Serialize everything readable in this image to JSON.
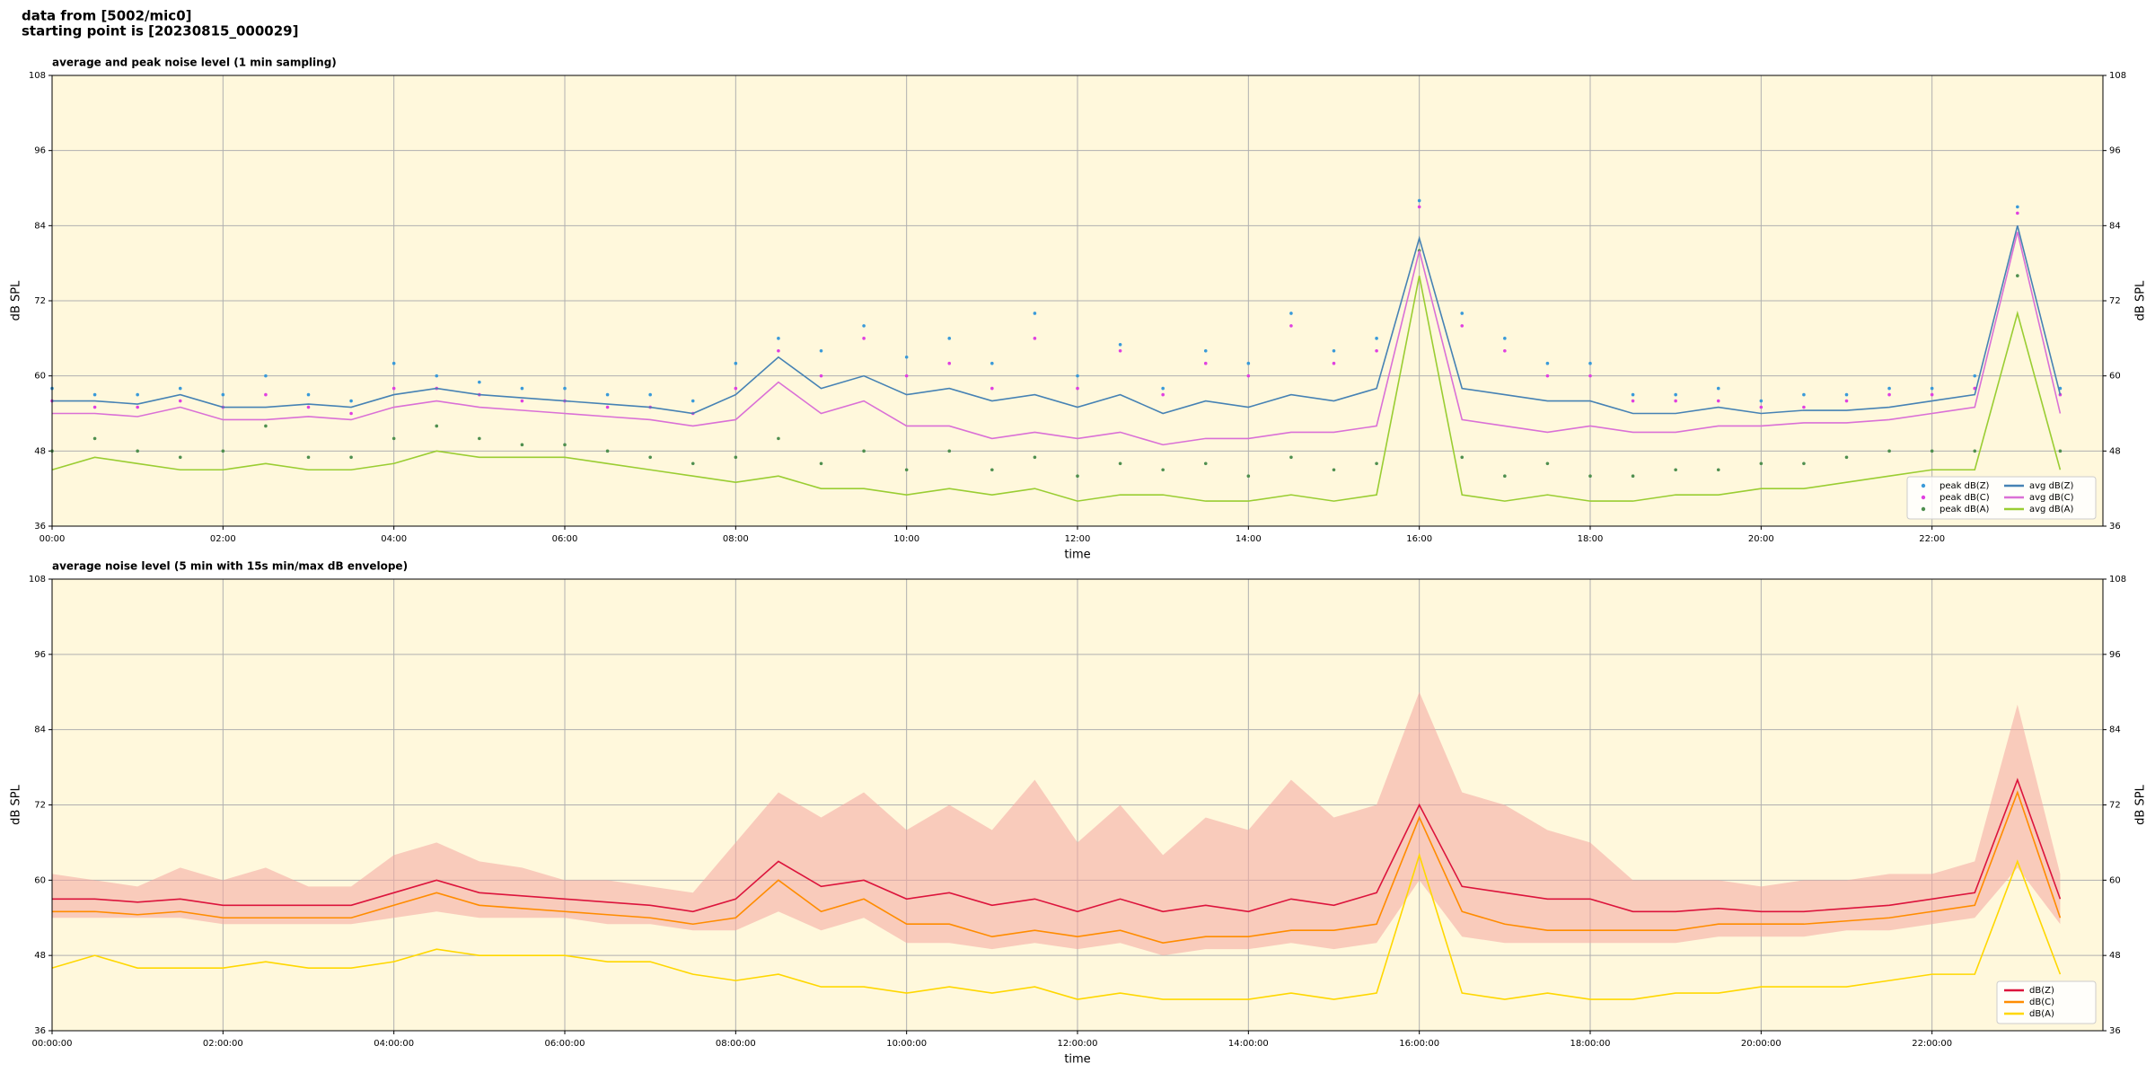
{
  "suptitle": [
    "data from [5002/mic0]",
    "starting point is [20230815_000029]"
  ],
  "chart_data": [
    {
      "type": "line",
      "title": "average and peak noise level (1 min sampling)",
      "xlabel": "time",
      "ylabel": "dB SPL",
      "background": "#fff8dc",
      "grid": true,
      "legend": "lower right",
      "legend_columns": 2,
      "xlim": [
        0,
        24
      ],
      "ylim": [
        36,
        108
      ],
      "xticks": [
        {
          "value": 0,
          "label": "00:00"
        },
        {
          "value": 2,
          "label": "02:00"
        },
        {
          "value": 4,
          "label": "04:00"
        },
        {
          "value": 6,
          "label": "06:00"
        },
        {
          "value": 8,
          "label": "08:00"
        },
        {
          "value": 10,
          "label": "10:00"
        },
        {
          "value": 12,
          "label": "12:00"
        },
        {
          "value": 14,
          "label": "14:00"
        },
        {
          "value": 16,
          "label": "16:00"
        },
        {
          "value": 18,
          "label": "18:00"
        },
        {
          "value": 20,
          "label": "20:00"
        },
        {
          "value": 22,
          "label": "22:00"
        }
      ],
      "yticks": [
        36,
        48,
        60,
        72,
        84,
        96,
        108
      ],
      "x": [
        0,
        0.5,
        1,
        1.5,
        2,
        2.5,
        3,
        3.5,
        4,
        4.5,
        5,
        5.5,
        6,
        6.5,
        7,
        7.5,
        8,
        8.5,
        9,
        9.5,
        10,
        10.5,
        11,
        11.5,
        12,
        12.5,
        13,
        13.5,
        14,
        14.5,
        15,
        15.5,
        16,
        16.5,
        17,
        17.5,
        18,
        18.5,
        19,
        19.5,
        20,
        20.5,
        21,
        21.5,
        22,
        22.5,
        23,
        23.5
      ],
      "series": [
        {
          "name": "peak dB(Z)",
          "type": "scatter",
          "color": "#3a9ad9",
          "values": [
            58,
            57,
            57,
            58,
            57,
            60,
            57,
            56,
            62,
            60,
            59,
            58,
            58,
            57,
            57,
            56,
            62,
            66,
            64,
            68,
            63,
            66,
            62,
            70,
            60,
            65,
            58,
            64,
            62,
            70,
            64,
            66,
            88,
            70,
            66,
            62,
            62,
            57,
            57,
            58,
            56,
            57,
            57,
            58,
            58,
            60,
            87,
            58
          ]
        },
        {
          "name": "peak dB(C)",
          "type": "scatter",
          "color": "#e040e0",
          "values": [
            56,
            55,
            55,
            56,
            55,
            57,
            55,
            54,
            58,
            58,
            57,
            56,
            56,
            55,
            55,
            54,
            58,
            64,
            60,
            66,
            60,
            62,
            58,
            66,
            58,
            64,
            57,
            62,
            60,
            68,
            62,
            64,
            87,
            68,
            64,
            60,
            60,
            56,
            56,
            56,
            55,
            55,
            56,
            57,
            57,
            58,
            86,
            57
          ]
        },
        {
          "name": "peak dB(A)",
          "type": "scatter",
          "color": "#4f8f4f",
          "values": [
            48,
            50,
            48,
            47,
            48,
            52,
            47,
            47,
            50,
            52,
            50,
            49,
            49,
            48,
            47,
            46,
            47,
            50,
            46,
            48,
            45,
            48,
            45,
            47,
            44,
            46,
            45,
            46,
            44,
            47,
            45,
            46,
            80,
            47,
            44,
            46,
            44,
            44,
            45,
            45,
            46,
            46,
            47,
            48,
            48,
            48,
            76,
            48
          ]
        },
        {
          "name": "avg dB(Z)",
          "type": "line",
          "color": "#4682b4",
          "values": [
            56,
            56,
            55.5,
            57,
            55,
            55,
            55.5,
            55,
            57,
            58,
            57,
            56.5,
            56,
            55.5,
            55,
            54,
            57,
            63,
            58,
            60,
            57,
            58,
            56,
            57,
            55,
            57,
            54,
            56,
            55,
            57,
            56,
            58,
            82,
            58,
            57,
            56,
            56,
            54,
            54,
            55,
            54,
            54.5,
            54.5,
            55,
            56,
            57,
            84,
            57
          ]
        },
        {
          "name": "avg dB(C)",
          "type": "line",
          "color": "#da70d6",
          "values": [
            54,
            54,
            53.5,
            55,
            53,
            53,
            53.5,
            53,
            55,
            56,
            55,
            54.5,
            54,
            53.5,
            53,
            52,
            53,
            59,
            54,
            56,
            52,
            52,
            50,
            51,
            50,
            51,
            49,
            50,
            50,
            51,
            51,
            52,
            80,
            53,
            52,
            51,
            52,
            51,
            51,
            52,
            52,
            52.5,
            52.5,
            53,
            54,
            55,
            83,
            54
          ]
        },
        {
          "name": "avg dB(A)",
          "type": "line",
          "color": "#9acd32",
          "values": [
            45,
            47,
            46,
            45,
            45,
            46,
            45,
            45,
            46,
            48,
            47,
            47,
            47,
            46,
            45,
            44,
            43,
            44,
            42,
            42,
            41,
            42,
            41,
            42,
            40,
            41,
            41,
            40,
            40,
            41,
            40,
            41,
            76,
            41,
            40,
            41,
            40,
            40,
            41,
            41,
            42,
            42,
            43,
            44,
            45,
            45,
            70,
            45
          ]
        }
      ]
    },
    {
      "type": "line",
      "title": "average noise level (5 min with 15s min/max dB envelope)",
      "xlabel": "time",
      "ylabel": "dB SPL",
      "background": "#fff8dc",
      "grid": true,
      "legend": "lower right",
      "legend_columns": 1,
      "xlim": [
        0,
        24
      ],
      "ylim": [
        36,
        108
      ],
      "xticks": [
        {
          "value": 0,
          "label": "00:00:00"
        },
        {
          "value": 2,
          "label": "02:00:00"
        },
        {
          "value": 4,
          "label": "04:00:00"
        },
        {
          "value": 6,
          "label": "06:00:00"
        },
        {
          "value": 8,
          "label": "08:00:00"
        },
        {
          "value": 10,
          "label": "10:00:00"
        },
        {
          "value": 12,
          "label": "12:00:00"
        },
        {
          "value": 14,
          "label": "14:00:00"
        },
        {
          "value": 16,
          "label": "16:00:00"
        },
        {
          "value": 18,
          "label": "18:00:00"
        },
        {
          "value": 20,
          "label": "20:00:00"
        },
        {
          "value": 22,
          "label": "22:00:00"
        }
      ],
      "yticks": [
        36,
        48,
        60,
        72,
        84,
        96,
        108
      ],
      "x": [
        0,
        0.5,
        1,
        1.5,
        2,
        2.5,
        3,
        3.5,
        4,
        4.5,
        5,
        5.5,
        6,
        6.5,
        7,
        7.5,
        8,
        8.5,
        9,
        9.5,
        10,
        10.5,
        11,
        11.5,
        12,
        12.5,
        13,
        13.5,
        14,
        14.5,
        15,
        15.5,
        16,
        16.5,
        17,
        17.5,
        18,
        18.5,
        19,
        19.5,
        20,
        20.5,
        21,
        21.5,
        22,
        22.5,
        23,
        23.5
      ],
      "envelope": {
        "color": "#f4a6a0",
        "lower": [
          54,
          54,
          54,
          54,
          53,
          53,
          53,
          53,
          54,
          55,
          54,
          54,
          54,
          53,
          53,
          52,
          52,
          55,
          52,
          54,
          50,
          50,
          49,
          50,
          49,
          50,
          48,
          49,
          49,
          50,
          49,
          50,
          60,
          51,
          50,
          50,
          50,
          50,
          50,
          51,
          51,
          51,
          52,
          52,
          53,
          54,
          62,
          53
        ],
        "upper": [
          61,
          60,
          59,
          62,
          60,
          62,
          59,
          59,
          64,
          66,
          63,
          62,
          60,
          60,
          59,
          58,
          66,
          74,
          70,
          74,
          68,
          72,
          68,
          76,
          66,
          72,
          64,
          70,
          68,
          76,
          70,
          72,
          90,
          74,
          72,
          68,
          66,
          60,
          60,
          60,
          59,
          60,
          60,
          61,
          61,
          63,
          88,
          61
        ]
      },
      "series": [
        {
          "name": "dB(Z)",
          "type": "line",
          "color": "#dc143c",
          "values": [
            57,
            57,
            56.5,
            57,
            56,
            56,
            56,
            56,
            58,
            60,
            58,
            57.5,
            57,
            56.5,
            56,
            55,
            57,
            63,
            59,
            60,
            57,
            58,
            56,
            57,
            55,
            57,
            55,
            56,
            55,
            57,
            56,
            58,
            72,
            59,
            58,
            57,
            57,
            55,
            55,
            55.5,
            55,
            55,
            55.5,
            56,
            57,
            58,
            76,
            57
          ]
        },
        {
          "name": "dB(C)",
          "type": "line",
          "color": "#ff8c00",
          "values": [
            55,
            55,
            54.5,
            55,
            54,
            54,
            54,
            54,
            56,
            58,
            56,
            55.5,
            55,
            54.5,
            54,
            53,
            54,
            60,
            55,
            57,
            53,
            53,
            51,
            52,
            51,
            52,
            50,
            51,
            51,
            52,
            52,
            53,
            70,
            55,
            53,
            52,
            52,
            52,
            52,
            53,
            53,
            53,
            53.5,
            54,
            55,
            56,
            74,
            54
          ]
        },
        {
          "name": "dB(A)",
          "type": "line",
          "color": "#ffd700",
          "values": [
            46,
            48,
            46,
            46,
            46,
            47,
            46,
            46,
            47,
            49,
            48,
            48,
            48,
            47,
            47,
            45,
            44,
            45,
            43,
            43,
            42,
            43,
            42,
            43,
            41,
            42,
            41,
            41,
            41,
            42,
            41,
            42,
            64,
            42,
            41,
            42,
            41,
            41,
            42,
            42,
            43,
            43,
            43,
            44,
            45,
            45,
            63,
            45
          ]
        }
      ]
    }
  ]
}
